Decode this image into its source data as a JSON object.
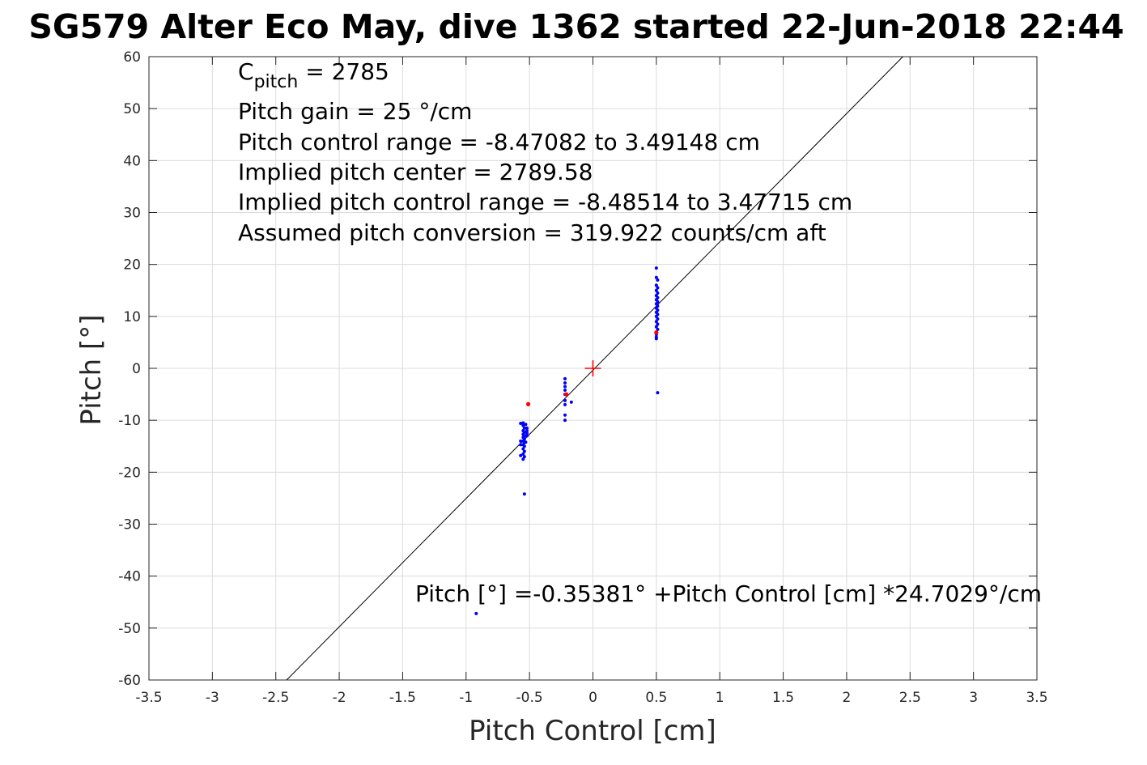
{
  "chart_data": {
    "type": "scatter",
    "title": "SG579 Alter Eco May, dive 1362 started 22-Jun-2018 22:44",
    "xlabel": "Pitch Control [cm]",
    "ylabel": "Pitch [°]",
    "xlim": [
      -3.5,
      3.5
    ],
    "ylim": [
      -60,
      60
    ],
    "xticks": [
      -3.5,
      -3,
      -2.5,
      -2,
      -1.5,
      -1,
      -0.5,
      0,
      0.5,
      1,
      1.5,
      2,
      2.5,
      3,
      3.5
    ],
    "xtick_labels": [
      "-3.5",
      "-3",
      "-2.5",
      "-2",
      "-1.5",
      "-1",
      "-0.5",
      "0",
      "0.5",
      "1",
      "1.5",
      "2",
      "2.5",
      "3",
      "3.5"
    ],
    "yticks": [
      -60,
      -50,
      -40,
      -30,
      -20,
      -10,
      0,
      10,
      20,
      30,
      40,
      50,
      60
    ],
    "ytick_labels": [
      "-60",
      "-50",
      "-40",
      "-30",
      "-20",
      "-10",
      "0",
      "10",
      "20",
      "30",
      "40",
      "50",
      "60"
    ],
    "grid": true,
    "colors": {
      "points": "#0000ff",
      "outliers": "#ff0000",
      "fit": "#000000",
      "center": "#ff0000",
      "grid": "#dcdcdc"
    },
    "annotations": {
      "c_pitch_symbol": "C",
      "c_pitch_subscript": "pitch",
      "c_pitch_value": " = 2785",
      "gain": "Pitch gain = 25 °/cm",
      "control_range": "Pitch control range = -8.47082 to 3.49148 cm",
      "implied_center": "Implied pitch center = 2789.58",
      "implied_range": "Implied pitch control range = -8.48514 to 3.47715 cm",
      "conversion": "Assumed pitch conversion = 319.922 counts/cm aft",
      "fit_equation": "Pitch [°] =-0.35381° +Pitch Control [cm] *24.7029°/cm"
    },
    "fit": {
      "intercept": -0.35381,
      "slope": 24.7029
    },
    "center_marker": {
      "x": 0,
      "y": 0
    },
    "series_points": [
      [
        -0.55,
        -10.5
      ],
      [
        -0.55,
        -11.0
      ],
      [
        -0.54,
        -11.5
      ],
      [
        -0.55,
        -12.0
      ],
      [
        -0.54,
        -12.3
      ],
      [
        -0.55,
        -12.7
      ],
      [
        -0.53,
        -13.0
      ],
      [
        -0.55,
        -13.3
      ],
      [
        -0.54,
        -13.6
      ],
      [
        -0.55,
        -14.0
      ],
      [
        -0.54,
        -14.3
      ],
      [
        -0.55,
        -14.7
      ],
      [
        -0.54,
        -15.0
      ],
      [
        -0.55,
        -15.5
      ],
      [
        -0.54,
        -16.0
      ],
      [
        -0.55,
        -16.5
      ],
      [
        -0.54,
        -17.0
      ],
      [
        -0.55,
        -17.5
      ],
      [
        -0.57,
        -10.6
      ],
      [
        -0.57,
        -14.0
      ],
      [
        -0.57,
        -14.7
      ],
      [
        -0.57,
        -16.8
      ],
      [
        -0.52,
        -11.5
      ],
      [
        -0.52,
        -12.0
      ],
      [
        -0.52,
        -12.5
      ],
      [
        -0.52,
        -13.0
      ],
      [
        -0.53,
        -10.8
      ],
      [
        -0.53,
        -14.2
      ],
      [
        -0.54,
        -24.2
      ],
      [
        -0.22,
        -2.0
      ],
      [
        -0.22,
        -2.8
      ],
      [
        -0.22,
        -3.5
      ],
      [
        -0.22,
        -4.2
      ],
      [
        -0.22,
        -5.0
      ],
      [
        -0.22,
        -6.2
      ],
      [
        -0.22,
        -7.0
      ],
      [
        -0.22,
        -9.0
      ],
      [
        -0.22,
        -10.0
      ],
      [
        -0.17,
        -6.5
      ],
      [
        0.5,
        19.3
      ],
      [
        0.5,
        17.5
      ],
      [
        0.51,
        17.0
      ],
      [
        0.5,
        16.0
      ],
      [
        0.51,
        15.5
      ],
      [
        0.5,
        15.0
      ],
      [
        0.51,
        14.5
      ],
      [
        0.5,
        14.0
      ],
      [
        0.51,
        13.6
      ],
      [
        0.5,
        13.2
      ],
      [
        0.51,
        12.8
      ],
      [
        0.5,
        12.4
      ],
      [
        0.51,
        12.0
      ],
      [
        0.5,
        11.6
      ],
      [
        0.51,
        11.2
      ],
      [
        0.5,
        10.8
      ],
      [
        0.51,
        10.4
      ],
      [
        0.5,
        10.0
      ],
      [
        0.51,
        9.5
      ],
      [
        0.5,
        9.0
      ],
      [
        0.51,
        8.5
      ],
      [
        0.5,
        8.0
      ],
      [
        0.51,
        7.5
      ],
      [
        0.5,
        6.5
      ],
      [
        0.5,
        6.0
      ],
      [
        0.5,
        5.7
      ],
      [
        0.51,
        -4.7
      ],
      [
        -0.92,
        -47.2
      ]
    ],
    "outlier_points": [
      [
        -0.51,
        -6.9
      ],
      [
        -0.21,
        -5.0
      ],
      [
        0.5,
        6.9
      ]
    ]
  }
}
